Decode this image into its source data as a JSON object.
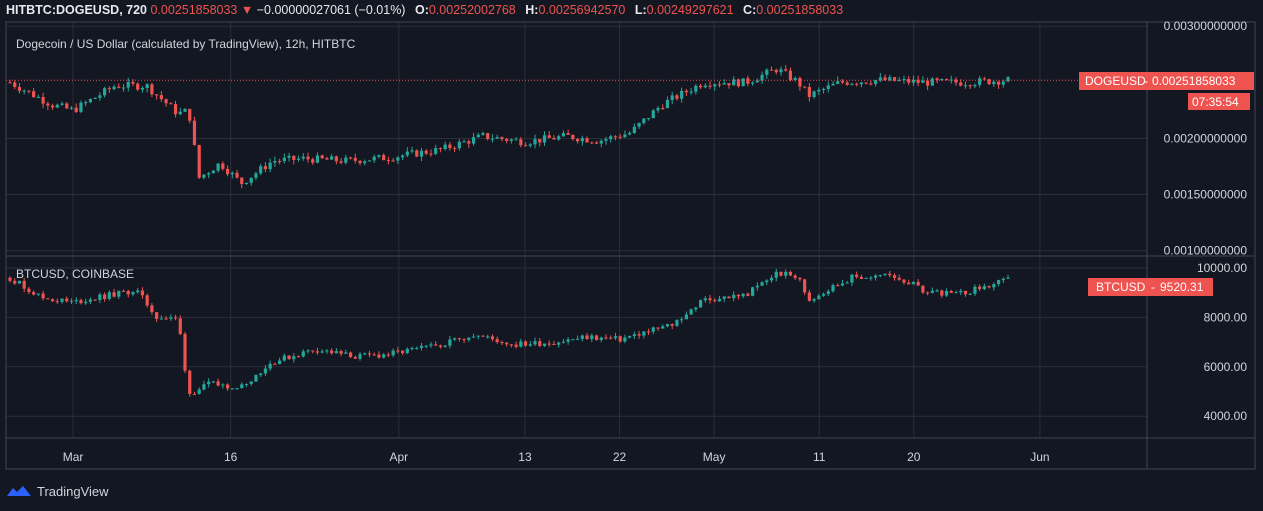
{
  "header": {
    "symbol": "HITBTC:DOGEUSD, 720",
    "last": "0.00251858033",
    "change_arrow": "▼",
    "change": "−0.00000027061 (−0.01%)",
    "o_label": "O:",
    "o_value": "0.00252002768",
    "h_label": "H:",
    "h_value": "0.00256942570",
    "l_label": "L:",
    "l_value": "0.00249297621",
    "c_label": "C:",
    "c_value": "0.00251858033"
  },
  "colors": {
    "background": "#131722",
    "up": "#26a69a",
    "down": "#ef5350",
    "grid": "#2a2e39",
    "text": "#d1d4dc",
    "price_line": "#ef5350"
  },
  "chart_data": [
    {
      "type": "candlestick",
      "title": "Dogecoin / US Dollar (calculated by TradingView), 12h, HITBTC",
      "price_tag_label": "DOGEUSD",
      "last_value": "0.00251858033",
      "countdown": "07:35:54",
      "yticks": [
        "0.00300000000",
        "0.00200000000",
        "0.00150000000",
        "0.00100000000"
      ],
      "ylim": [
        0.00097,
        0.00302
      ],
      "series": [
        {
          "x": "2020-02-24",
          "y": 0.0025
        },
        {
          "x": "2020-02-28",
          "y": 0.0023
        },
        {
          "x": "2020-03-01",
          "y": 0.00225
        },
        {
          "x": "2020-03-05",
          "y": 0.00247
        },
        {
          "x": "2020-03-08",
          "y": 0.00247
        },
        {
          "x": "2020-03-11",
          "y": 0.00222
        },
        {
          "x": "2020-03-12",
          "y": 0.00225
        },
        {
          "x": "2020-03-13",
          "y": 0.00165
        },
        {
          "x": "2020-03-15",
          "y": 0.00178
        },
        {
          "x": "2020-03-17",
          "y": 0.0016
        },
        {
          "x": "2020-03-20",
          "y": 0.0018
        },
        {
          "x": "2020-03-23",
          "y": 0.00182
        },
        {
          "x": "2020-03-27",
          "y": 0.0018
        },
        {
          "x": "2020-03-31",
          "y": 0.00183
        },
        {
          "x": "2020-04-05",
          "y": 0.0019
        },
        {
          "x": "2020-04-09",
          "y": 0.00202
        },
        {
          "x": "2020-04-13",
          "y": 0.00197
        },
        {
          "x": "2020-04-17",
          "y": 0.00202
        },
        {
          "x": "2020-04-20",
          "y": 0.00198
        },
        {
          "x": "2020-04-23",
          "y": 0.00205
        },
        {
          "x": "2020-04-26",
          "y": 0.0023
        },
        {
          "x": "2020-04-30",
          "y": 0.0025
        },
        {
          "x": "2020-05-04",
          "y": 0.0025
        },
        {
          "x": "2020-05-07",
          "y": 0.00262
        },
        {
          "x": "2020-05-09",
          "y": 0.0025
        },
        {
          "x": "2020-05-10",
          "y": 0.00238
        },
        {
          "x": "2020-05-13",
          "y": 0.0025
        },
        {
          "x": "2020-05-17",
          "y": 0.00252
        },
        {
          "x": "2020-05-21",
          "y": 0.0025
        },
        {
          "x": "2020-05-25",
          "y": 0.0025
        },
        {
          "x": "2020-05-29",
          "y": 0.00252
        }
      ]
    },
    {
      "type": "candlestick",
      "title": "BTCUSD, COINBASE",
      "price_tag_label": "BTCUSD",
      "last_value": "9520.31",
      "yticks": [
        "10000.00",
        "8000.00",
        "6000.00",
        "4000.00"
      ],
      "ylim": [
        3200,
        10400
      ],
      "series": [
        {
          "x": "2020-02-24",
          "y": 9600
        },
        {
          "x": "2020-02-27",
          "y": 8800
        },
        {
          "x": "2020-03-01",
          "y": 8600
        },
        {
          "x": "2020-03-04",
          "y": 8850
        },
        {
          "x": "2020-03-07",
          "y": 9100
        },
        {
          "x": "2020-03-09",
          "y": 8000
        },
        {
          "x": "2020-03-11",
          "y": 7900
        },
        {
          "x": "2020-03-12",
          "y": 4900
        },
        {
          "x": "2020-03-14",
          "y": 5300
        },
        {
          "x": "2020-03-17",
          "y": 5200
        },
        {
          "x": "2020-03-20",
          "y": 6200
        },
        {
          "x": "2020-03-24",
          "y": 6700
        },
        {
          "x": "2020-03-28",
          "y": 6400
        },
        {
          "x": "2020-03-31",
          "y": 6500
        },
        {
          "x": "2020-04-04",
          "y": 6800
        },
        {
          "x": "2020-04-08",
          "y": 7300
        },
        {
          "x": "2020-04-12",
          "y": 6900
        },
        {
          "x": "2020-04-16",
          "y": 7000
        },
        {
          "x": "2020-04-19",
          "y": 7200
        },
        {
          "x": "2020-04-22",
          "y": 7100
        },
        {
          "x": "2020-04-27",
          "y": 7700
        },
        {
          "x": "2020-04-30",
          "y": 8700
        },
        {
          "x": "2020-05-04",
          "y": 8900
        },
        {
          "x": "2020-05-07",
          "y": 9800
        },
        {
          "x": "2020-05-09",
          "y": 9600
        },
        {
          "x": "2020-05-10",
          "y": 8700
        },
        {
          "x": "2020-05-14",
          "y": 9600
        },
        {
          "x": "2020-05-18",
          "y": 9700
        },
        {
          "x": "2020-05-21",
          "y": 9100
        },
        {
          "x": "2020-05-24",
          "y": 8900
        },
        {
          "x": "2020-05-29",
          "y": 9500
        }
      ]
    }
  ],
  "x_axis": {
    "labels": [
      "Mar",
      "16",
      "Apr",
      "13",
      "22",
      "May",
      "11",
      "20",
      "Jun"
    ],
    "dates": [
      "2020-03-01",
      "2020-03-16",
      "2020-04-01",
      "2020-04-13",
      "2020-04-22",
      "2020-05-01",
      "2020-05-11",
      "2020-05-20",
      "2020-06-01"
    ]
  },
  "footer": {
    "brand": "TradingView"
  }
}
